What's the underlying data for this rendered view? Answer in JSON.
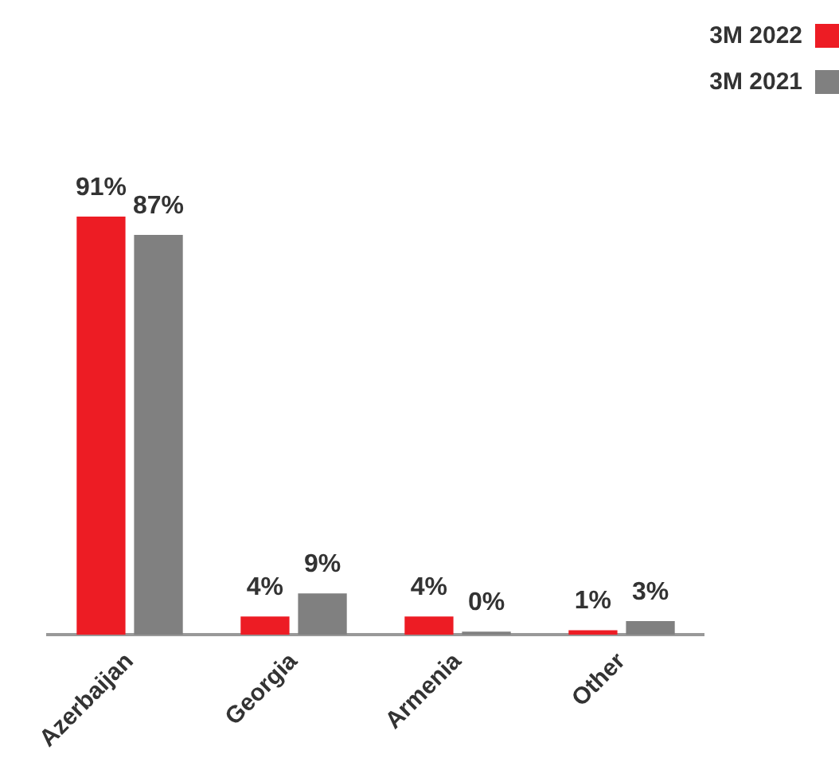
{
  "chart_data": {
    "type": "bar",
    "categories": [
      "Azerbaijan",
      "Georgia",
      "Armenia",
      "Other"
    ],
    "series": [
      {
        "name": "3M 2022",
        "color": "#ed1c24",
        "values": [
          91,
          4,
          4,
          1
        ],
        "value_labels": [
          "91%",
          "4%",
          "4%",
          "1%"
        ]
      },
      {
        "name": "3M 2021",
        "color": "#808080",
        "values": [
          87,
          9,
          0,
          3
        ],
        "value_labels": [
          "87%",
          "9%",
          "0%",
          "3%"
        ]
      }
    ],
    "legend": "top right",
    "grid": false
  }
}
